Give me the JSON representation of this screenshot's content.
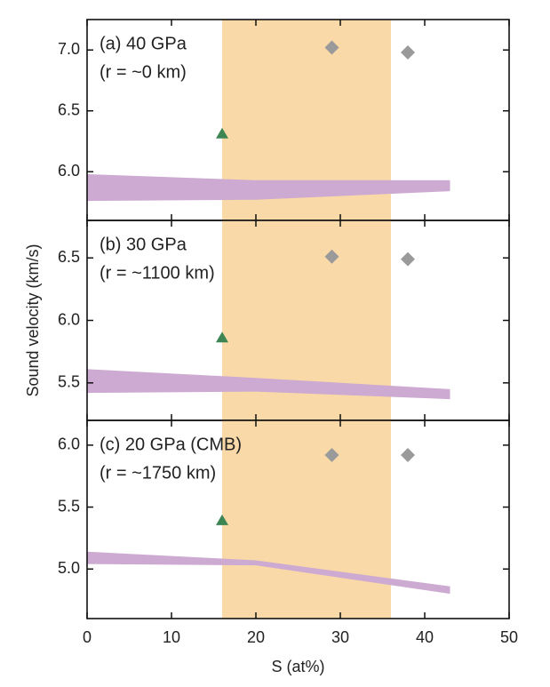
{
  "chart_data": [
    {
      "type": "band-scatter",
      "annotation": [
        "(a) 40 GPa",
        "(r = ~0 km)"
      ],
      "xlim": [
        0,
        50
      ],
      "ylim": [
        5.6,
        7.25
      ],
      "yticks": [
        6.0,
        6.5,
        7.0
      ],
      "highlight": {
        "xrange": [
          16,
          36
        ],
        "color": "#f9d9a8"
      },
      "series": [
        {
          "kind": "band",
          "color": "#cdaad1",
          "x": [
            0,
            20,
            43
          ],
          "upper": [
            5.98,
            5.93,
            5.93
          ],
          "lower": [
            5.76,
            5.77,
            5.84
          ]
        },
        {
          "kind": "triangle",
          "color": "#3d8654",
          "x": [
            16
          ],
          "values": [
            6.31
          ]
        },
        {
          "kind": "diamond",
          "color": "#9a9a9a",
          "x": [
            29,
            38
          ],
          "values": [
            7.02,
            6.98
          ]
        }
      ]
    },
    {
      "type": "band-scatter",
      "annotation": [
        "(b) 30 GPa",
        "(r = ~1100 km)"
      ],
      "ylabel": "Sound velocity (km/s)",
      "xlim": [
        0,
        50
      ],
      "ylim": [
        5.2,
        6.8
      ],
      "yticks": [
        5.5,
        6.0,
        6.5
      ],
      "highlight": {
        "xrange": [
          16,
          36
        ],
        "color": "#f9d9a8"
      },
      "series": [
        {
          "kind": "band",
          "color": "#cdaad1",
          "x": [
            0,
            20,
            43
          ],
          "upper": [
            5.61,
            5.54,
            5.45
          ],
          "lower": [
            5.42,
            5.43,
            5.37
          ]
        },
        {
          "kind": "triangle",
          "color": "#3d8654",
          "x": [
            16
          ],
          "values": [
            5.86
          ]
        },
        {
          "kind": "diamond",
          "color": "#9a9a9a",
          "x": [
            29,
            38
          ],
          "values": [
            6.51,
            6.49
          ]
        }
      ]
    },
    {
      "type": "band-scatter",
      "annotation": [
        "(c) 20 GPa (CMB)",
        "(r = ~1750 km)"
      ],
      "xlabel": "S (at%)",
      "xlim": [
        0,
        50
      ],
      "xticks": [
        0,
        10,
        20,
        30,
        40,
        50
      ],
      "ylim": [
        4.6,
        6.2
      ],
      "yticks": [
        5.0,
        5.5,
        6.0
      ],
      "highlight": {
        "xrange": [
          16,
          36
        ],
        "color": "#f9d9a8"
      },
      "series": [
        {
          "kind": "band",
          "color": "#cdaad1",
          "x": [
            0,
            20,
            43
          ],
          "upper": [
            5.14,
            5.07,
            4.86
          ],
          "lower": [
            5.04,
            5.03,
            4.8
          ]
        },
        {
          "kind": "triangle",
          "color": "#3d8654",
          "x": [
            16
          ],
          "values": [
            5.39
          ]
        },
        {
          "kind": "diamond",
          "color": "#9a9a9a",
          "x": [
            29,
            38
          ],
          "values": [
            5.92,
            5.92
          ]
        }
      ]
    }
  ]
}
